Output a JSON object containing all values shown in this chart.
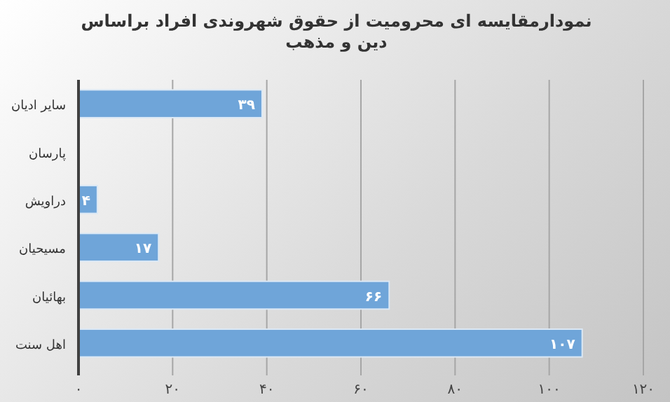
{
  "chart_data": {
    "type": "bar",
    "orientation": "horizontal",
    "title": "نمودارمقایسه ای محرومیت از حقوق شهروندی افراد براساس دین و مذهب",
    "categories": [
      "سایر ادیان",
      "پارسان",
      "دراویش",
      "مسیحیان",
      "بهائیان",
      "اهل سنت"
    ],
    "values": [
      39,
      0,
      4,
      17,
      66,
      107
    ],
    "value_labels": [
      "۳۹",
      null,
      "۴",
      "۱۷",
      "۶۶",
      "۱۰۷"
    ],
    "color": "#6fa5d9",
    "xlim": [
      0,
      120
    ],
    "xticks": [
      {
        "value": 0,
        "label": "۰"
      },
      {
        "value": 20,
        "label": "۲۰"
      },
      {
        "value": 40,
        "label": "۴۰"
      },
      {
        "value": 60,
        "label": "۶۰"
      },
      {
        "value": 80,
        "label": "۸۰"
      },
      {
        "value": 100,
        "label": "۱۰۰"
      },
      {
        "value": 120,
        "label": "۱۲۰"
      }
    ],
    "grid": "x"
  }
}
